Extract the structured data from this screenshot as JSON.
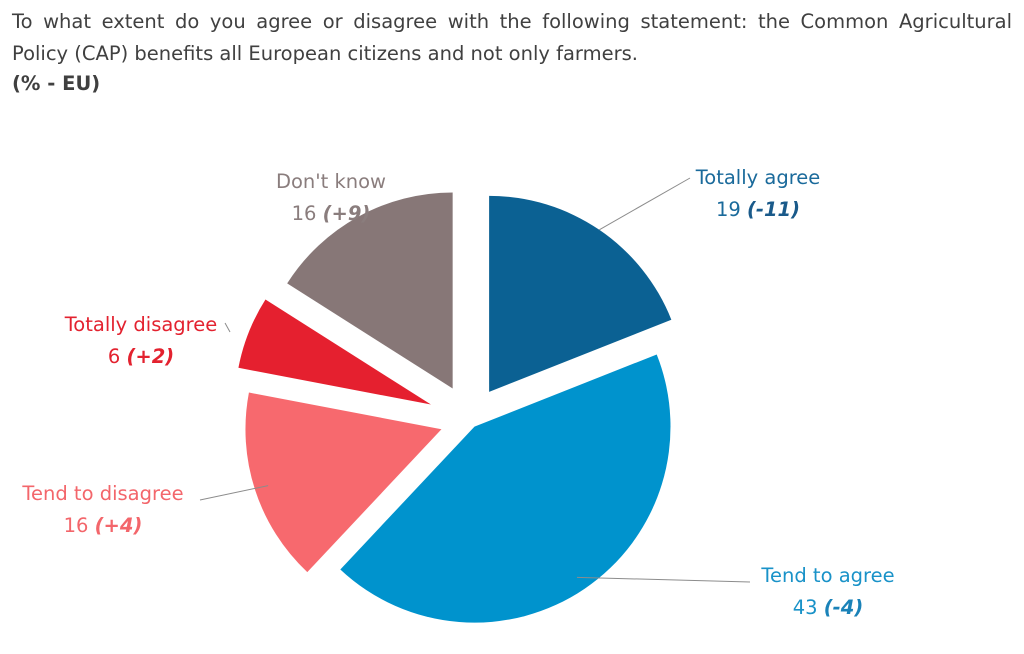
{
  "question": "To what extent do you agree or disagree with the following statement: the Common Agricultural Policy (CAP) benefits all European citizens and not only farmers.",
  "unit_label": "(% - EU)",
  "chart_data": {
    "type": "pie",
    "slices": [
      {
        "label": "Totally agree",
        "value": 19,
        "change": "(-11)",
        "color": "#0b6193",
        "label_color": "#1a6a9b",
        "change_color": "#1a5a8a"
      },
      {
        "label": "Tend to agree",
        "value": 43,
        "change": "(-4)",
        "color": "#0093cd",
        "label_color": "#1992c8",
        "change_color": "#1a82b8"
      },
      {
        "label": "Tend to disagree",
        "value": 16,
        "change": "(+4)",
        "color": "#f7696e",
        "label_color": "#f3666b",
        "change_color": "#f3666b"
      },
      {
        "label": "Totally disagree",
        "value": 6,
        "change": "(+2)",
        "color": "#e5202f",
        "label_color": "#e3222f",
        "change_color": "#e3222f"
      },
      {
        "label": "Don't know",
        "value": 16,
        "change": "(+9)",
        "color": "#877777",
        "label_color": "#8a7d7d",
        "change_color": "#8a7d7d"
      }
    ]
  }
}
